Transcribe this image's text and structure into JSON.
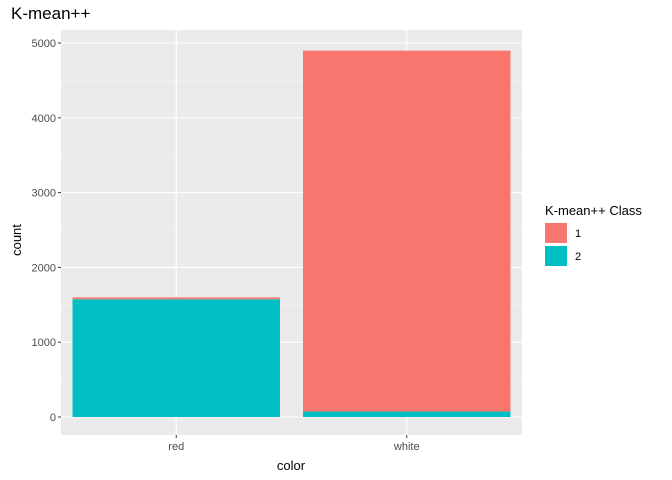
{
  "chart_data": {
    "type": "bar",
    "stacked": true,
    "title": "K-mean++",
    "xlabel": "color",
    "ylabel": "count",
    "categories": [
      "red",
      "white"
    ],
    "series": [
      {
        "name": "1",
        "color": "#F8766D",
        "values": [
          25,
          4825
        ]
      },
      {
        "name": "2",
        "color": "#00BFC4",
        "values": [
          1574,
          73
        ]
      }
    ],
    "ylim": [
      0,
      5000
    ],
    "yticks": [
      0,
      1000,
      2000,
      3000,
      4000,
      5000
    ],
    "grid": true,
    "legend": {
      "title": "K-mean++ Class",
      "placement": "right"
    }
  }
}
